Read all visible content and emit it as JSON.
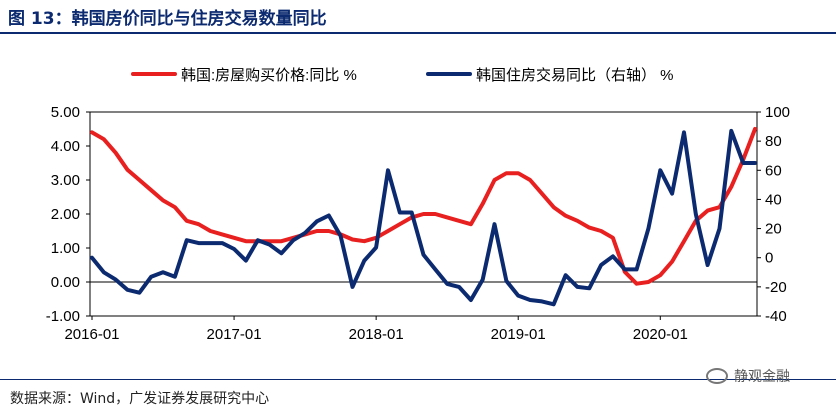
{
  "figure": {
    "title": "图 13：韩国房价同比与住房交易数量同比",
    "source": "数据来源：Wind，广发证券发展研究中心",
    "watermark": "静观金融"
  },
  "chart_data": {
    "type": "line",
    "legend_position": "top",
    "x_ticks": [
      "2016-01",
      "2017-01",
      "2018-01",
      "2019-01",
      "2020-01"
    ],
    "x": [
      "2016-01",
      "2016-02",
      "2016-03",
      "2016-04",
      "2016-05",
      "2016-06",
      "2016-07",
      "2016-08",
      "2016-09",
      "2016-10",
      "2016-11",
      "2016-12",
      "2017-01",
      "2017-02",
      "2017-03",
      "2017-04",
      "2017-05",
      "2017-06",
      "2017-07",
      "2017-08",
      "2017-09",
      "2017-10",
      "2017-11",
      "2017-12",
      "2018-01",
      "2018-02",
      "2018-03",
      "2018-04",
      "2018-05",
      "2018-06",
      "2018-07",
      "2018-08",
      "2018-09",
      "2018-10",
      "2018-11",
      "2018-12",
      "2019-01",
      "2019-02",
      "2019-03",
      "2019-04",
      "2019-05",
      "2019-06",
      "2019-07",
      "2019-08",
      "2019-09",
      "2019-10",
      "2019-11",
      "2019-12",
      "2020-01",
      "2020-02",
      "2020-03",
      "2020-04",
      "2020-05",
      "2020-06",
      "2020-07",
      "2020-08",
      "2020-09"
    ],
    "y_left": {
      "ticks": [
        "5.00",
        "4.00",
        "3.00",
        "2.00",
        "1.00",
        "0.00",
        "-1.00"
      ],
      "min": -1,
      "max": 5
    },
    "y_right": {
      "ticks": [
        "100",
        "80",
        "60",
        "40",
        "20",
        "0",
        "-20",
        "-40"
      ],
      "min": -40,
      "max": 100
    },
    "series": [
      {
        "name": "韩国:房屋购买价格:同比 %",
        "axis": "left",
        "color": "#e8201f",
        "values": [
          4.4,
          4.2,
          3.8,
          3.3,
          3.0,
          2.7,
          2.4,
          2.2,
          1.8,
          1.7,
          1.5,
          1.4,
          1.3,
          1.2,
          1.2,
          1.2,
          1.2,
          1.3,
          1.4,
          1.5,
          1.5,
          1.4,
          1.25,
          1.2,
          1.3,
          1.5,
          1.7,
          1.9,
          2.0,
          2.0,
          1.9,
          1.8,
          1.7,
          2.3,
          3.0,
          3.2,
          3.2,
          3.0,
          2.6,
          2.2,
          1.95,
          1.8,
          1.6,
          1.5,
          1.3,
          0.3,
          -0.05,
          0.0,
          0.2,
          0.6,
          1.2,
          1.8,
          2.1,
          2.2,
          2.8,
          3.6,
          4.5
        ]
      },
      {
        "name": "韩国住房交易同比（右轴） %",
        "axis": "right",
        "color": "#0b2a6f",
        "values": [
          0,
          -10,
          -15,
          -22,
          -24,
          -13,
          -10,
          -13,
          12,
          10,
          10,
          10,
          6,
          -2,
          12,
          9,
          3,
          12,
          17,
          25,
          29,
          15,
          -20,
          -2,
          7,
          60,
          31,
          31,
          2,
          -8,
          -18,
          -20,
          -29,
          -15,
          23,
          -16,
          -26,
          -29,
          -30,
          -32,
          -12,
          -20,
          -21,
          -5,
          1,
          -8,
          -8,
          20,
          60,
          44,
          86,
          30,
          -5,
          20,
          87,
          65,
          65
        ]
      }
    ]
  }
}
